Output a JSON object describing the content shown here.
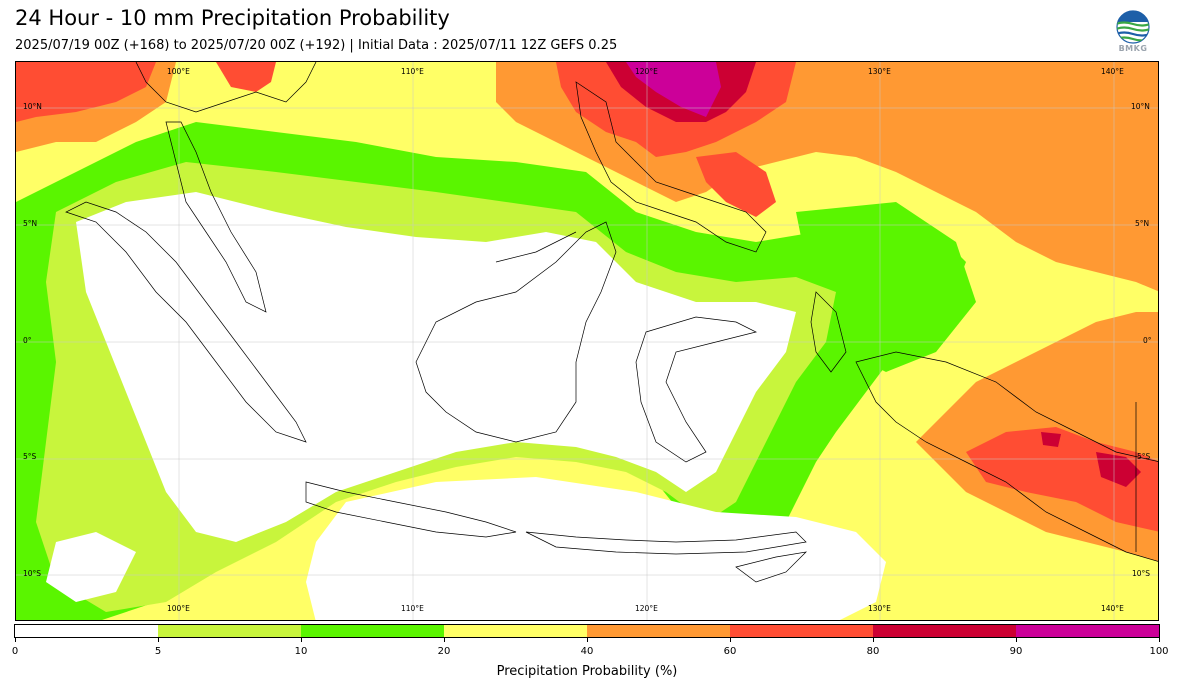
{
  "header": {
    "title": "24 Hour - 10 mm Precipitation Probability",
    "subtitle": "2025/07/19 00Z (+168) to 2025/07/20 00Z (+192) | Initial Data : 2025/07/11 12Z GEFS 0.25",
    "logo_text": "BMKG"
  },
  "map": {
    "lon_labels": [
      "100°E",
      "110°E",
      "120°E",
      "130°E",
      "140°E"
    ],
    "lat_labels": [
      "10°N",
      "5°N",
      "0°",
      "5°S",
      "10°S"
    ],
    "extent": {
      "lon_min": 93.5,
      "lon_max": 142.5,
      "lat_min": -11.5,
      "lat_max": 12.5
    }
  },
  "colorbar": {
    "label": "Precipitation Probability (%)",
    "ticks": [
      "0",
      "5",
      "10",
      "20",
      "40",
      "60",
      "80",
      "90",
      "100"
    ],
    "colors": [
      "#ffffff",
      "#c8f53c",
      "#5af500",
      "#ffff66",
      "#ff9933",
      "#ff4d33",
      "#cc0033",
      "#cc0099"
    ]
  }
}
